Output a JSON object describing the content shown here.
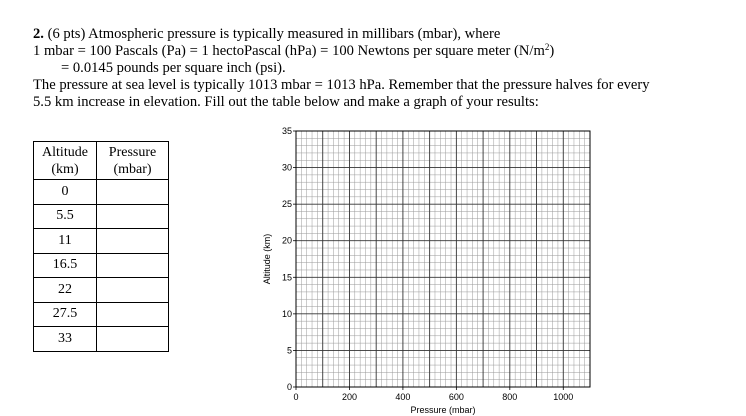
{
  "question": {
    "number": "2.",
    "points": "(6 pts)",
    "line1_rest": "Atmospheric pressure is typically measured in millibars (mbar), where",
    "line2": "1 mbar = 100 Pascals (Pa) = 1 hectoPascal (hPa) = 100 Newtons per square meter (N/m",
    "line2_sup": "2",
    "line2_end": ")",
    "line3": "= 0.0145 pounds per square inch (psi).",
    "line4": "The pressure at sea level is typically 1013 mbar = 1013 hPa. Remember that the pressure halves for every",
    "line5": "5.5 km increase in elevation. Fill out the table below and make a graph of your results:"
  },
  "table": {
    "headers": [
      {
        "line1": "Altitude",
        "line2": "(km)"
      },
      {
        "line1": "Pressure",
        "line2": "(mbar)"
      }
    ],
    "rows": [
      {
        "altitude": "0",
        "pressure": ""
      },
      {
        "altitude": "5.5",
        "pressure": ""
      },
      {
        "altitude": "11",
        "pressure": ""
      },
      {
        "altitude": "16.5",
        "pressure": ""
      },
      {
        "altitude": "22",
        "pressure": ""
      },
      {
        "altitude": "27.5",
        "pressure": ""
      },
      {
        "altitude": "33",
        "pressure": ""
      }
    ]
  },
  "chart_data": {
    "type": "scatter",
    "xlabel": "Pressure (mbar)",
    "ylabel": "Altitude (km)",
    "xlim": [
      0,
      1100
    ],
    "ylim": [
      0,
      35
    ],
    "x_ticks": [
      "0",
      "200",
      "400",
      "600",
      "800",
      "1000"
    ],
    "y_ticks": [
      "0",
      "5",
      "10",
      "15",
      "20",
      "25",
      "30",
      "35"
    ],
    "grid": true,
    "series": []
  }
}
